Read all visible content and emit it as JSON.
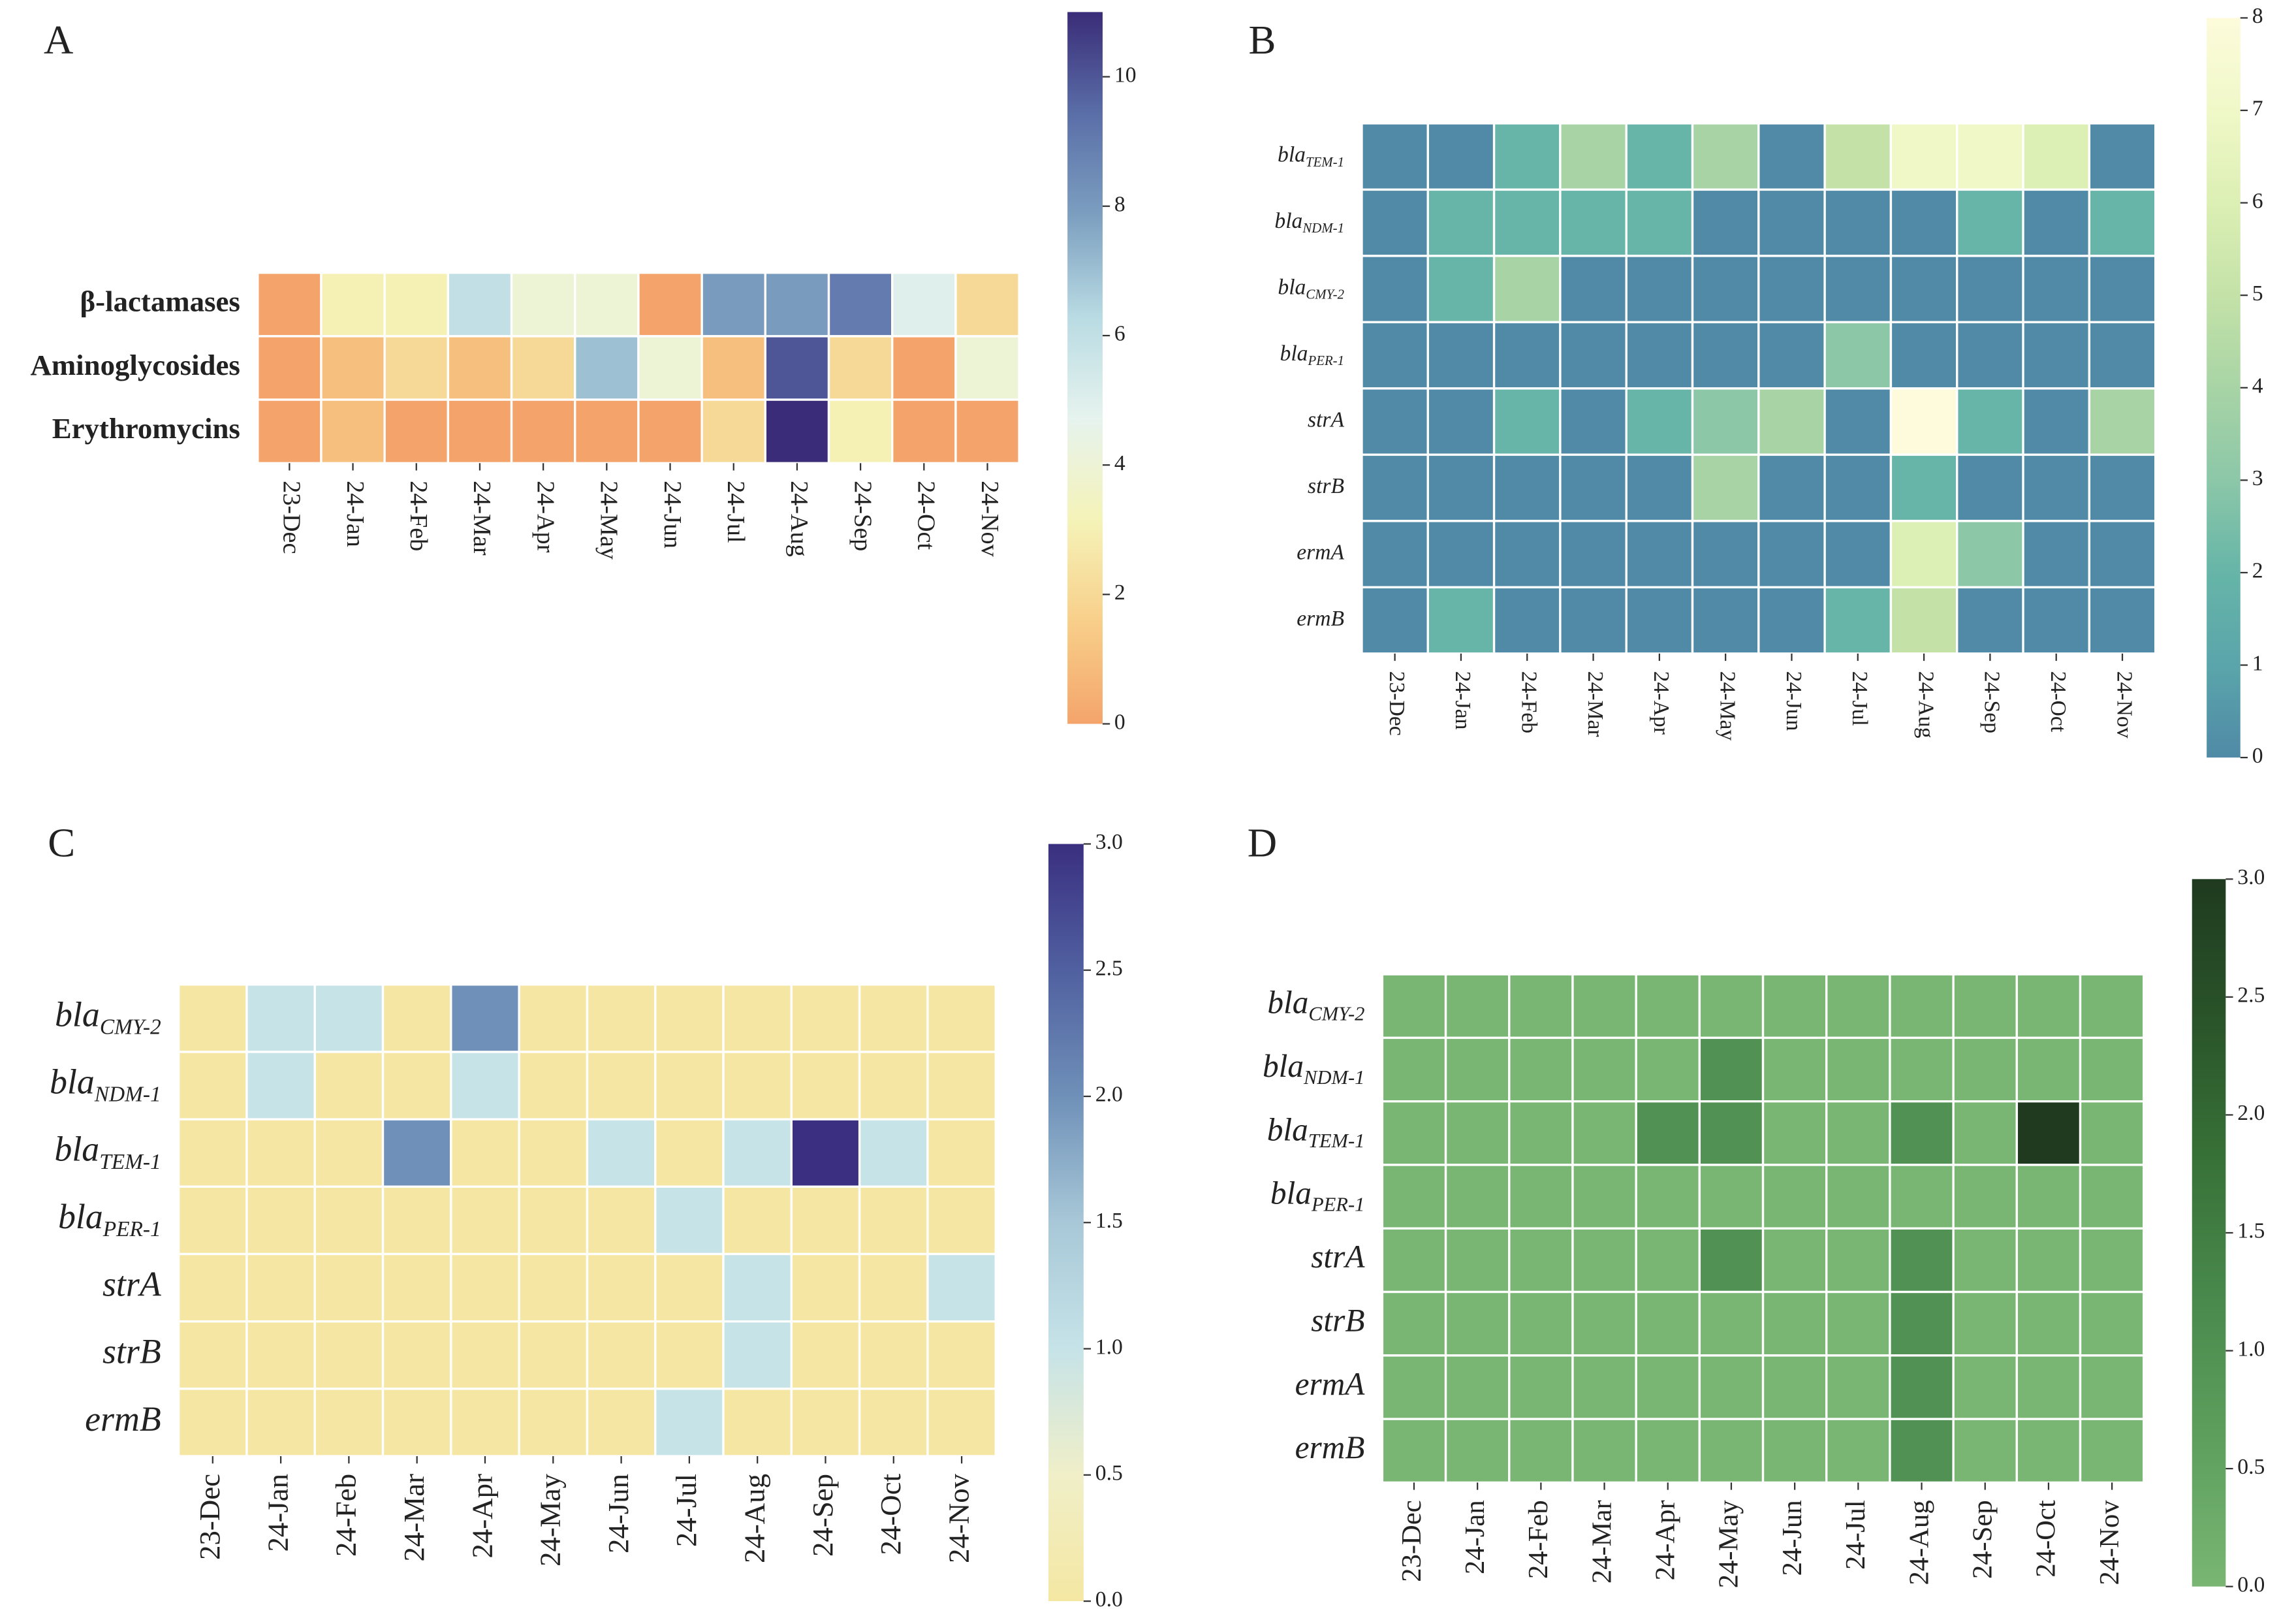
{
  "chart_data": [
    {
      "type": "heatmap",
      "label": "A",
      "categories": [
        "23-Dec",
        "24-Jan",
        "24-Feb",
        "24-Mar",
        "24-Apr",
        "24-May",
        "24-Jun",
        "24-Jul",
        "24-Aug",
        "24-Sep",
        "24-Oct",
        "24-Nov"
      ],
      "rows": [
        "β-lactamases",
        "Aminoglycosides",
        "Erythromycins"
      ],
      "values": [
        [
          0,
          3,
          3,
          6,
          4,
          4,
          0,
          8,
          8,
          9,
          5,
          2
        ],
        [
          0,
          1,
          2,
          1,
          2,
          7,
          4,
          1,
          10,
          2,
          0,
          4
        ],
        [
          0,
          1,
          0,
          0,
          0,
          0,
          0,
          2,
          11,
          3,
          0,
          0
        ]
      ],
      "zlim": [
        0,
        11
      ],
      "zticks": [
        0,
        2,
        4,
        6,
        8,
        10
      ],
      "colors": [
        "#f4a46a",
        "#f8cf8a",
        "#f5f3b8",
        "#e6f3ee",
        "#b9dbe3",
        "#7c9fc0",
        "#5a6ea8",
        "#3a2c78"
      ]
    },
    {
      "type": "heatmap",
      "label": "B",
      "categories": [
        "23-Dec",
        "24-Jan",
        "24-Feb",
        "24-Mar",
        "24-Apr",
        "24-May",
        "24-Jun",
        "24-Jul",
        "24-Aug",
        "24-Sep",
        "24-Oct",
        "24-Nov"
      ],
      "rows": [
        {
          "text": "bla",
          "sub": "TEM-1"
        },
        {
          "text": "bla",
          "sub": "NDM-1"
        },
        {
          "text": "bla",
          "sub": "CMY-2"
        },
        {
          "text": "bla",
          "sub": "PER-1"
        },
        "strA",
        "strB",
        "ermA",
        "ermB"
      ],
      "values": [
        [
          0,
          0,
          2,
          4,
          2,
          4,
          0,
          5,
          7,
          7,
          6,
          0
        ],
        [
          0,
          2,
          2,
          2,
          2,
          0,
          0,
          0,
          0,
          2,
          0,
          2
        ],
        [
          0,
          2,
          4,
          0,
          0,
          0,
          0,
          0,
          0,
          0,
          0,
          0
        ],
        [
          0,
          0,
          0,
          0,
          0,
          0,
          0,
          3,
          0,
          0,
          0,
          0
        ],
        [
          0,
          0,
          2,
          0,
          2,
          3,
          4,
          0,
          8,
          2,
          0,
          4
        ],
        [
          0,
          0,
          0,
          0,
          0,
          4,
          0,
          0,
          2,
          0,
          0,
          0
        ],
        [
          0,
          0,
          0,
          0,
          0,
          0,
          0,
          0,
          6,
          3,
          0,
          0
        ],
        [
          0,
          2,
          0,
          0,
          0,
          0,
          0,
          2,
          5,
          0,
          0,
          0
        ]
      ],
      "zlim": [
        0,
        8
      ],
      "zticks": [
        0,
        1,
        2,
        3,
        4,
        5,
        6,
        7,
        8
      ],
      "colors": [
        "#508aa6",
        "#5aa5ab",
        "#66b5a8",
        "#8cc7a8",
        "#a8d4a5",
        "#c4e2a8",
        "#dcefb4",
        "#f0f8c8",
        "#fdfbdb"
      ]
    },
    {
      "type": "heatmap",
      "label": "C",
      "categories": [
        "23-Dec",
        "24-Jan",
        "24-Feb",
        "24-Mar",
        "24-Apr",
        "24-May",
        "24-Jun",
        "24-Jul",
        "24-Aug",
        "24-Sep",
        "24-Oct",
        "24-Nov"
      ],
      "rows": [
        {
          "text": "bla",
          "sub": "CMY-2"
        },
        {
          "text": "bla",
          "sub": "NDM-1"
        },
        {
          "text": "bla",
          "sub": "TEM-1"
        },
        {
          "text": "bla",
          "sub": "PER-1"
        },
        "strA",
        "strB",
        "ermB"
      ],
      "values": [
        [
          0,
          1,
          1,
          0,
          2,
          0,
          0,
          0,
          0,
          0,
          0,
          0
        ],
        [
          0,
          1,
          0,
          0,
          1,
          0,
          0,
          0,
          0,
          0,
          0,
          0
        ],
        [
          0,
          0,
          0,
          2,
          0,
          0,
          1,
          0,
          1,
          3,
          1,
          0
        ],
        [
          0,
          0,
          0,
          0,
          0,
          0,
          0,
          1,
          0,
          0,
          0,
          0
        ],
        [
          0,
          0,
          0,
          0,
          0,
          0,
          0,
          0,
          1,
          0,
          0,
          1
        ],
        [
          0,
          0,
          0,
          0,
          0,
          0,
          0,
          0,
          1,
          0,
          0,
          0
        ],
        [
          0,
          0,
          0,
          0,
          0,
          0,
          0,
          1,
          0,
          0,
          0,
          0
        ]
      ],
      "zlim": [
        0,
        3
      ],
      "zticks": [
        {
          "value": 0,
          "label": "0.0"
        },
        0.5,
        {
          "value": 1,
          "label": "1.0"
        },
        1.5,
        {
          "value": 2,
          "label": "2.0"
        },
        2.5,
        {
          "value": 3,
          "label": "3.0"
        }
      ],
      "colors": [
        "#f5e7a3",
        "#f0efc8",
        "#c6e3e8",
        "#a8c8d8",
        "#6f90b8",
        "#5060a0",
        "#3a2f80"
      ]
    },
    {
      "type": "heatmap",
      "label": "D",
      "categories": [
        "23-Dec",
        "24-Jan",
        "24-Feb",
        "24-Mar",
        "24-Apr",
        "24-May",
        "24-Jun",
        "24-Jul",
        "24-Aug",
        "24-Sep",
        "24-Oct",
        "24-Nov"
      ],
      "rows": [
        {
          "text": "bla",
          "sub": "CMY-2"
        },
        {
          "text": "bla",
          "sub": "NDM-1"
        },
        {
          "text": "bla",
          "sub": "TEM-1"
        },
        {
          "text": "bla",
          "sub": "PER-1"
        },
        "strA",
        "strB",
        "ermA",
        "ermB"
      ],
      "values": [
        [
          0,
          0,
          0,
          0,
          0,
          0,
          0,
          0,
          0,
          0,
          0,
          0
        ],
        [
          0,
          0,
          0,
          0,
          0,
          1,
          0,
          0,
          0,
          0,
          0,
          0
        ],
        [
          0,
          0,
          0,
          0,
          1,
          1,
          0,
          0,
          1,
          0,
          3,
          0
        ],
        [
          0,
          0,
          0,
          0,
          0,
          0,
          0,
          0,
          0,
          0,
          0,
          0
        ],
        [
          0,
          0,
          0,
          0,
          0,
          1,
          0,
          0,
          1,
          0,
          0,
          0
        ],
        [
          0,
          0,
          0,
          0,
          0,
          0,
          0,
          0,
          1,
          0,
          0,
          0
        ],
        [
          0,
          0,
          0,
          0,
          0,
          0,
          0,
          0,
          1,
          0,
          0,
          0
        ],
        [
          0,
          0,
          0,
          0,
          0,
          0,
          0,
          0,
          1,
          0,
          0,
          0
        ]
      ],
      "zlim": [
        0,
        3
      ],
      "zticks": [
        {
          "value": 0,
          "label": "0.0"
        },
        0.5,
        {
          "value": 1,
          "label": "1.0"
        },
        1.5,
        {
          "value": 2,
          "label": "2.0"
        },
        2.5,
        {
          "value": 3,
          "label": "3.0"
        }
      ],
      "colors": [
        "#79b673",
        "#5fa05e",
        "#4a8a4d",
        "#387238",
        "#2a542a",
        "#1f3a1f"
      ]
    }
  ]
}
